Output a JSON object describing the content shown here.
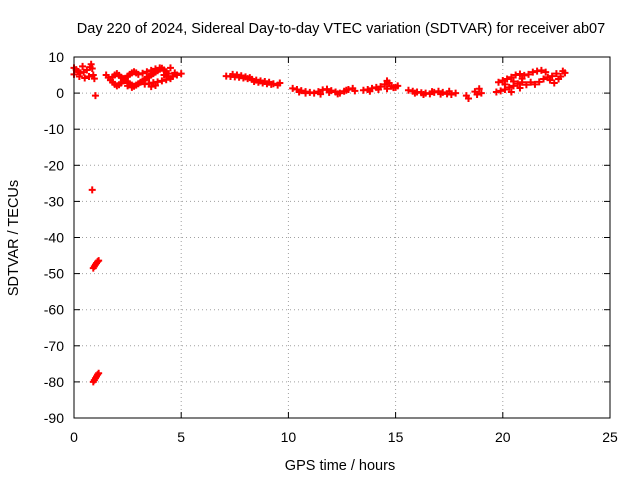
{
  "chart_data": {
    "type": "scatter",
    "title": "Day 220 of 2024, Sidereal Day-to-day VTEC variation (SDTVAR) for receiver ab07",
    "xlabel": "GPS time / hours",
    "ylabel": "SDTVAR / TECUs",
    "xlim": [
      0,
      25
    ],
    "ylim": [
      -90,
      10
    ],
    "xticks": [
      0,
      5,
      10,
      15,
      20,
      25
    ],
    "yticks": [
      10,
      0,
      -10,
      -20,
      -30,
      -40,
      -50,
      -60,
      -70,
      -80,
      -90
    ],
    "grid": true,
    "marker": "+",
    "color": "#ff0000",
    "series": [
      {
        "points": [
          [
            0.0,
            7.0
          ],
          [
            0.1,
            6.5
          ],
          [
            0.2,
            6.0
          ],
          [
            0.3,
            5.6
          ],
          [
            0.45,
            5.8
          ],
          [
            0.6,
            6.4
          ],
          [
            0.75,
            7.2
          ],
          [
            0.8,
            8.0
          ],
          [
            0.85,
            6.8
          ],
          [
            0.0,
            5.2
          ],
          [
            0.25,
            4.6
          ],
          [
            0.5,
            4.2
          ],
          [
            0.7,
            4.6
          ],
          [
            0.9,
            5.0
          ],
          [
            0.95,
            4.0
          ],
          [
            0.4,
            7.4
          ],
          [
            1.0,
            -0.7
          ],
          [
            0.85,
            -26.8
          ],
          [
            0.9,
            -48.5
          ],
          [
            0.95,
            -48.0
          ],
          [
            1.0,
            -47.5
          ],
          [
            1.05,
            -47.1
          ],
          [
            1.1,
            -46.7
          ],
          [
            1.15,
            -46.4
          ],
          [
            0.9,
            -80.0
          ],
          [
            0.95,
            -79.5
          ],
          [
            1.0,
            -79.0
          ],
          [
            1.05,
            -78.5
          ],
          [
            1.1,
            -78.0
          ],
          [
            1.15,
            -77.6
          ],
          [
            1.5,
            5.0
          ],
          [
            1.6,
            4.3
          ],
          [
            1.7,
            3.6
          ],
          [
            1.8,
            3.0
          ],
          [
            1.9,
            2.4
          ],
          [
            2.0,
            2.0
          ],
          [
            2.1,
            2.3
          ],
          [
            2.2,
            2.8
          ],
          [
            2.3,
            3.4
          ],
          [
            2.4,
            4.1
          ],
          [
            2.5,
            4.7
          ],
          [
            2.6,
            5.2
          ],
          [
            2.7,
            5.6
          ],
          [
            2.8,
            5.9
          ],
          [
            2.9,
            5.6
          ],
          [
            1.8,
            4.5
          ],
          [
            1.9,
            5.0
          ],
          [
            2.0,
            5.4
          ],
          [
            2.1,
            4.9
          ],
          [
            2.2,
            4.4
          ],
          [
            2.3,
            4.0
          ],
          [
            2.4,
            3.5
          ],
          [
            2.5,
            3.0
          ],
          [
            2.6,
            2.6
          ],
          [
            2.7,
            2.2
          ],
          [
            2.8,
            1.9
          ],
          [
            2.9,
            2.2
          ],
          [
            3.0,
            2.6
          ],
          [
            3.1,
            3.0
          ],
          [
            3.2,
            3.4
          ],
          [
            3.3,
            3.8
          ],
          [
            3.4,
            4.2
          ],
          [
            3.5,
            4.6
          ],
          [
            3.6,
            5.0
          ],
          [
            3.7,
            5.4
          ],
          [
            3.8,
            5.8
          ],
          [
            3.9,
            6.2
          ],
          [
            4.0,
            6.6
          ],
          [
            4.1,
            6.9
          ],
          [
            4.2,
            6.4
          ],
          [
            4.3,
            5.9
          ],
          [
            4.4,
            5.4
          ],
          [
            3.0,
            5.2
          ],
          [
            3.2,
            5.5
          ],
          [
            3.4,
            5.9
          ],
          [
            3.6,
            6.3
          ],
          [
            3.8,
            6.7
          ],
          [
            4.0,
            7.0
          ],
          [
            4.2,
            5.0
          ],
          [
            4.4,
            4.6
          ],
          [
            3.3,
            2.5
          ],
          [
            3.5,
            2.7
          ],
          [
            3.7,
            2.9
          ],
          [
            3.9,
            3.1
          ],
          [
            4.1,
            3.4
          ],
          [
            4.3,
            3.7
          ],
          [
            4.5,
            4.0
          ],
          [
            4.6,
            4.6
          ],
          [
            4.5,
            7.0
          ],
          [
            4.7,
            5.6
          ],
          [
            4.8,
            5.0
          ],
          [
            5.0,
            5.4
          ],
          [
            2.5,
            2.0
          ],
          [
            2.7,
            1.6
          ],
          [
            3.6,
            1.8
          ],
          [
            3.8,
            2.1
          ],
          [
            7.1,
            4.7
          ],
          [
            7.3,
            4.6
          ],
          [
            7.5,
            4.5
          ],
          [
            7.7,
            4.4
          ],
          [
            7.9,
            4.2
          ],
          [
            8.1,
            4.0
          ],
          [
            8.3,
            3.8
          ],
          [
            8.5,
            3.6
          ],
          [
            8.7,
            3.4
          ],
          [
            8.9,
            3.2
          ],
          [
            9.1,
            3.0
          ],
          [
            9.3,
            2.6
          ],
          [
            9.5,
            2.2
          ],
          [
            7.4,
            5.2
          ],
          [
            7.6,
            5.0
          ],
          [
            7.8,
            4.8
          ],
          [
            8.0,
            4.5
          ],
          [
            8.2,
            4.3
          ],
          [
            8.4,
            3.2
          ],
          [
            8.6,
            3.0
          ],
          [
            8.8,
            2.8
          ],
          [
            9.0,
            2.6
          ],
          [
            9.2,
            2.4
          ],
          [
            9.6,
            2.8
          ],
          [
            10.2,
            1.3
          ],
          [
            10.4,
            1.0
          ],
          [
            10.6,
            0.7
          ],
          [
            10.8,
            0.4
          ],
          [
            11.0,
            0.2
          ],
          [
            11.2,
            0.0
          ],
          [
            11.4,
            0.4
          ],
          [
            11.6,
            0.9
          ],
          [
            11.8,
            1.1
          ],
          [
            12.0,
            0.7
          ],
          [
            12.2,
            0.3
          ],
          [
            12.4,
            0.0
          ],
          [
            12.6,
            0.5
          ],
          [
            12.8,
            1.0
          ],
          [
            13.0,
            1.3
          ],
          [
            10.5,
            0.3
          ],
          [
            10.8,
            0.0
          ],
          [
            11.5,
            -0.3
          ],
          [
            11.9,
            0.2
          ],
          [
            12.3,
            -0.2
          ],
          [
            12.7,
            0.8
          ],
          [
            13.1,
            0.6
          ],
          [
            13.5,
            0.8
          ],
          [
            13.7,
            1.0
          ],
          [
            13.9,
            1.3
          ],
          [
            14.1,
            1.6
          ],
          [
            14.3,
            1.8
          ],
          [
            14.5,
            2.4
          ],
          [
            14.6,
            3.4
          ],
          [
            14.7,
            2.8
          ],
          [
            14.8,
            1.9
          ],
          [
            14.9,
            1.5
          ],
          [
            15.0,
            1.6
          ],
          [
            13.8,
            0.5
          ],
          [
            14.2,
            1.0
          ],
          [
            14.6,
            1.2
          ],
          [
            15.1,
            2.0
          ],
          [
            15.6,
            0.8
          ],
          [
            15.8,
            0.5
          ],
          [
            16.0,
            0.3
          ],
          [
            16.2,
            0.1
          ],
          [
            16.4,
            0.0
          ],
          [
            16.6,
            -0.2
          ],
          [
            16.8,
            0.2
          ],
          [
            17.0,
            0.5
          ],
          [
            17.2,
            0.2
          ],
          [
            17.4,
            -0.2
          ],
          [
            17.6,
            -0.4
          ],
          [
            17.8,
            0.0
          ],
          [
            15.9,
            0.0
          ],
          [
            16.3,
            -0.4
          ],
          [
            16.7,
            0.4
          ],
          [
            17.1,
            -0.3
          ],
          [
            17.5,
            0.5
          ],
          [
            18.3,
            -0.7
          ],
          [
            18.4,
            -1.5
          ],
          [
            18.7,
            0.4
          ],
          [
            18.8,
            -0.4
          ],
          [
            18.9,
            1.2
          ],
          [
            19.0,
            0.0
          ],
          [
            19.7,
            0.3
          ],
          [
            19.9,
            0.6
          ],
          [
            20.1,
            1.0
          ],
          [
            20.3,
            1.6
          ],
          [
            20.5,
            2.0
          ],
          [
            20.7,
            2.6
          ],
          [
            20.9,
            3.0
          ],
          [
            19.8,
            3.0
          ],
          [
            20.0,
            3.5
          ],
          [
            20.2,
            3.9
          ],
          [
            20.4,
            4.4
          ],
          [
            20.6,
            5.0
          ],
          [
            20.8,
            5.3
          ],
          [
            21.0,
            4.9
          ],
          [
            20.1,
            2.4
          ],
          [
            20.5,
            3.2
          ],
          [
            20.9,
            4.0
          ],
          [
            21.2,
            5.2
          ],
          [
            21.4,
            5.8
          ],
          [
            21.6,
            6.1
          ],
          [
            21.8,
            6.3
          ],
          [
            22.0,
            5.8
          ],
          [
            21.3,
            3.0
          ],
          [
            21.5,
            2.4
          ],
          [
            21.7,
            3.1
          ],
          [
            21.9,
            3.9
          ],
          [
            22.1,
            4.4
          ],
          [
            22.3,
            4.7
          ],
          [
            22.5,
            5.4
          ],
          [
            22.6,
            3.9
          ],
          [
            22.7,
            4.6
          ],
          [
            22.8,
            6.1
          ],
          [
            22.9,
            5.6
          ],
          [
            22.2,
            3.6
          ],
          [
            22.4,
            2.8
          ],
          [
            20.4,
            0.3
          ],
          [
            20.8,
            1.4
          ],
          [
            21.1,
            2.3
          ]
        ]
      }
    ]
  }
}
